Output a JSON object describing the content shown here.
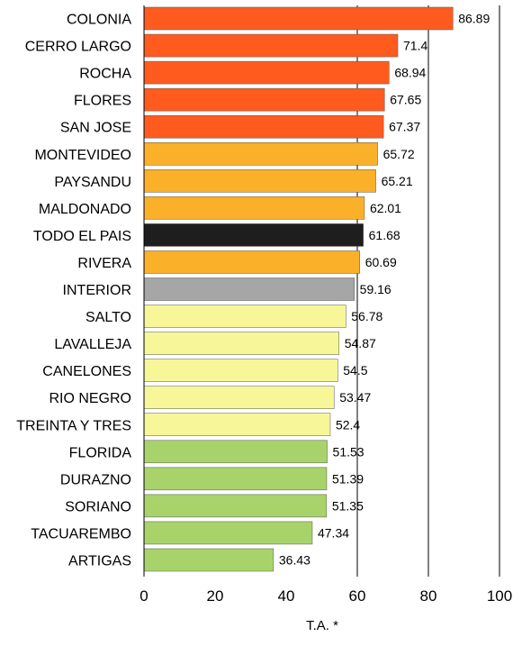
{
  "chart_data": {
    "type": "bar",
    "orientation": "horizontal",
    "title": "",
    "xlabel": "T.A. *",
    "ylabel": "",
    "xlim": [
      0,
      100
    ],
    "xticks": [
      0,
      20,
      40,
      60,
      80,
      100
    ],
    "grid": "vertical gridlines at 60, 80 and 100",
    "legend": "none",
    "categories": [
      "COLONIA",
      "CERRO LARGO",
      "ROCHA",
      "FLORES",
      "SAN JOSE",
      "MONTEVIDEO",
      "PAYSANDU",
      "MALDONADO",
      "TODO EL PAIS",
      "RIVERA",
      "INTERIOR",
      "SALTO",
      "LAVALLEJA",
      "CANELONES",
      "RIO NEGRO",
      "TREINTA Y TRES",
      "FLORIDA",
      "DURAZNO",
      "SORIANO",
      "TACUAREMBO",
      "ARTIGAS"
    ],
    "values": [
      86.89,
      71.4,
      68.94,
      67.65,
      67.37,
      65.72,
      65.21,
      62.01,
      61.68,
      60.69,
      59.16,
      56.78,
      54.87,
      54.5,
      53.47,
      52.4,
      51.53,
      51.39,
      51.35,
      47.34,
      36.43
    ],
    "value_labels": [
      "86.89",
      "71.4",
      "68.94",
      "67.65",
      "67.37",
      "65.72",
      "65.21",
      "62.01",
      "61.68",
      "60.69",
      "59.16",
      "56.78",
      "54.87",
      "54.5",
      "53.47",
      "52.4",
      "51.53",
      "51.39",
      "51.35",
      "47.34",
      "36.43"
    ],
    "bar_colors": [
      "#ff5b1f",
      "#ff5b1f",
      "#ff5b1f",
      "#ff5b1f",
      "#ff5b1f",
      "#fbb02a",
      "#fbb02a",
      "#fbb02a",
      "#1e1e1e",
      "#fbb02a",
      "#a6a6a6",
      "#f7f79a",
      "#f7f79a",
      "#f7f79a",
      "#f7f79a",
      "#f7f79a",
      "#a8d36a",
      "#a8d36a",
      "#a8d36a",
      "#a8d36a",
      "#a8d36a"
    ]
  }
}
